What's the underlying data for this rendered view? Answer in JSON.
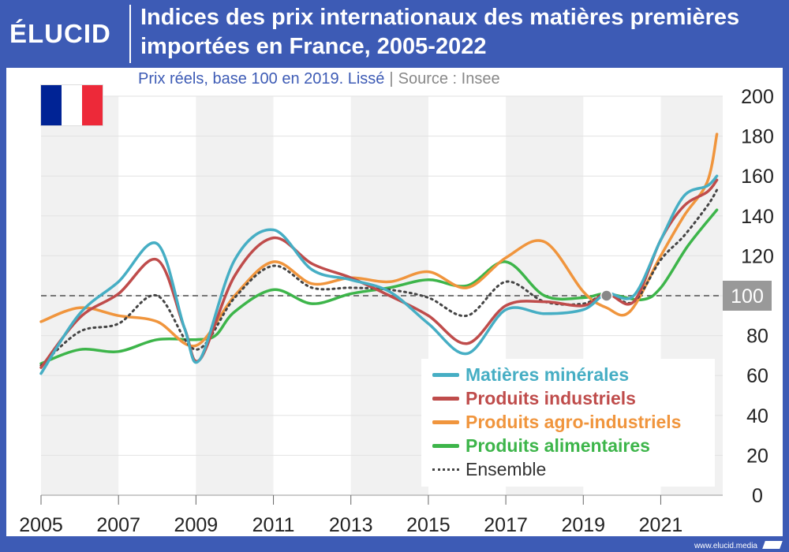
{
  "brand": {
    "logo": "ÉLUCID",
    "footer": "www.elucid.media"
  },
  "header": {
    "title": "Indices des prix internationaux des matières premières importées en France, 2005-2022",
    "subtitle": "Prix réels, base 100 en 2019. Lissé",
    "source": "Source : Insee"
  },
  "flag": {
    "colors": [
      "#002395",
      "#ffffff",
      "#ed2939"
    ]
  },
  "chart_data": {
    "type": "line",
    "title": "Indices des prix internationaux des matières premières importées en France, 2005-2022",
    "subtitle": "Prix réels, base 100 en 2019. Lissé",
    "xlim": [
      2005,
      2022.6
    ],
    "ylim": [
      0,
      200
    ],
    "x_ticks": [
      "2005",
      "2007",
      "2009",
      "2011",
      "2013",
      "2015",
      "2017",
      "2019",
      "2021"
    ],
    "y_ticks": [
      "0",
      "20",
      "40",
      "60",
      "80",
      "100",
      "120",
      "140",
      "160",
      "180",
      "200"
    ],
    "reference_line": {
      "value": 100,
      "label": "100"
    },
    "grid": true,
    "legend_position": "bottom-right",
    "series": [
      {
        "name": "Matières minérales",
        "color": "#46aec4",
        "points": [
          [
            2005,
            61
          ],
          [
            2006,
            91
          ],
          [
            2007,
            107
          ],
          [
            2008,
            126
          ],
          [
            2008.7,
            84
          ],
          [
            2009.1,
            68
          ],
          [
            2010,
            118
          ],
          [
            2011,
            133
          ],
          [
            2012,
            113
          ],
          [
            2013,
            108
          ],
          [
            2014,
            102
          ],
          [
            2015,
            86
          ],
          [
            2016,
            71
          ],
          [
            2017,
            93
          ],
          [
            2018,
            91
          ],
          [
            2019,
            93
          ],
          [
            2019.6,
            101
          ],
          [
            2020.3,
            100
          ],
          [
            2021,
            128
          ],
          [
            2021.6,
            150
          ],
          [
            2022.2,
            155
          ],
          [
            2022.45,
            160
          ]
        ]
      },
      {
        "name": "Produits industriels",
        "color": "#bf4c4b",
        "points": [
          [
            2005,
            64
          ],
          [
            2006,
            89
          ],
          [
            2007,
            101
          ],
          [
            2008,
            118
          ],
          [
            2008.7,
            84
          ],
          [
            2009.1,
            68
          ],
          [
            2010,
            110
          ],
          [
            2011,
            129
          ],
          [
            2012,
            116
          ],
          [
            2013,
            109
          ],
          [
            2014,
            100
          ],
          [
            2015,
            90
          ],
          [
            2016,
            76
          ],
          [
            2017,
            95
          ],
          [
            2018,
            97
          ],
          [
            2019,
            95
          ],
          [
            2019.6,
            101
          ],
          [
            2020.3,
            97
          ],
          [
            2021,
            128
          ],
          [
            2021.6,
            145
          ],
          [
            2022.2,
            152
          ],
          [
            2022.45,
            158
          ]
        ]
      },
      {
        "name": "Produits agro-industriels",
        "color": "#f0953d",
        "points": [
          [
            2005,
            87
          ],
          [
            2006,
            94
          ],
          [
            2007,
            90
          ],
          [
            2008,
            87
          ],
          [
            2009,
            75
          ],
          [
            2010,
            100
          ],
          [
            2011,
            117
          ],
          [
            2012,
            106
          ],
          [
            2013,
            109
          ],
          [
            2014,
            107
          ],
          [
            2015,
            112
          ],
          [
            2016,
            104
          ],
          [
            2017,
            119
          ],
          [
            2018,
            127
          ],
          [
            2019,
            102
          ],
          [
            2019.6,
            94
          ],
          [
            2020.2,
            92
          ],
          [
            2021,
            120
          ],
          [
            2021.6,
            140
          ],
          [
            2022.2,
            157
          ],
          [
            2022.45,
            181
          ]
        ]
      },
      {
        "name": "Produits alimentaires",
        "color": "#3db54a",
        "points": [
          [
            2005,
            66
          ],
          [
            2006,
            73
          ],
          [
            2007,
            72
          ],
          [
            2008,
            78
          ],
          [
            2009,
            78
          ],
          [
            2009.5,
            80
          ],
          [
            2010,
            92
          ],
          [
            2011,
            103
          ],
          [
            2012,
            96
          ],
          [
            2013,
            101
          ],
          [
            2014,
            104
          ],
          [
            2015,
            108
          ],
          [
            2016,
            105
          ],
          [
            2017,
            117
          ],
          [
            2018,
            100
          ],
          [
            2019,
            99
          ],
          [
            2019.6,
            101
          ],
          [
            2020.5,
            98
          ],
          [
            2021,
            104
          ],
          [
            2021.7,
            125
          ],
          [
            2022.45,
            143
          ]
        ]
      },
      {
        "name": "Ensemble",
        "color": "#444444",
        "dashed": true,
        "points": [
          [
            2005,
            65
          ],
          [
            2006,
            82
          ],
          [
            2007,
            86
          ],
          [
            2008,
            100
          ],
          [
            2009,
            73
          ],
          [
            2010,
            99
          ],
          [
            2011,
            115
          ],
          [
            2012,
            104
          ],
          [
            2013,
            104
          ],
          [
            2014,
            103
          ],
          [
            2015,
            99
          ],
          [
            2016,
            90
          ],
          [
            2017,
            107
          ],
          [
            2018,
            97
          ],
          [
            2019,
            96
          ],
          [
            2019.6,
            101
          ],
          [
            2020.3,
            97
          ],
          [
            2021,
            118
          ],
          [
            2021.6,
            130
          ],
          [
            2022.2,
            145
          ],
          [
            2022.45,
            153
          ]
        ]
      }
    ],
    "highlight_point": {
      "x": 2019.6,
      "y": 100
    }
  }
}
